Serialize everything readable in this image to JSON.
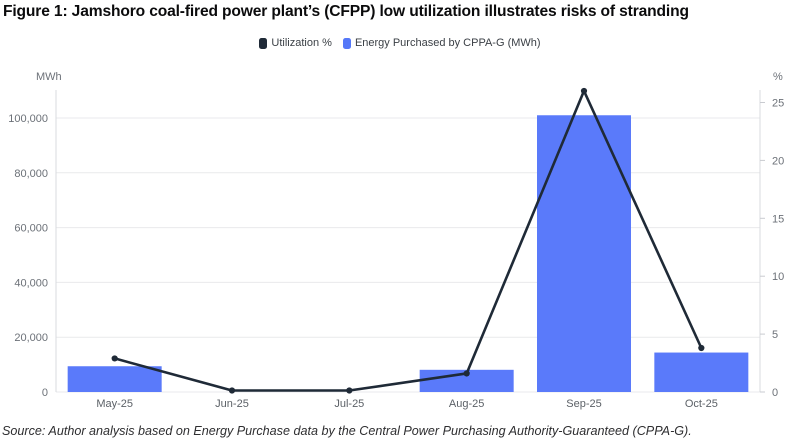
{
  "figure": {
    "title": "Figure 1: Jamshoro coal-fired power plant’s (CFPP) low utilization illustrates risks of stranding",
    "source": "Source: Author analysis based on Energy Purchase data by the Central Power Purchasing Authority-Guaranteed (CPPA-G)."
  },
  "legend": {
    "items": [
      {
        "label": "Utilization %",
        "color": "#1F2A37"
      },
      {
        "label": "Energy Purchased by CPPA-G (MWh)",
        "color": "#5578F8"
      }
    ]
  },
  "chart_data": {
    "type": "bar+line combo",
    "title": "Figure 1: Jamshoro coal-fired power plant’s (CFPP) low utilization illustrates risks of stranding",
    "categories": [
      "May-25",
      "Jun-25",
      "Jul-25",
      "Aug-25",
      "Sep-25",
      "Oct-25"
    ],
    "series": [
      {
        "name": "Energy Purchased by CPPA-G (MWh)",
        "type": "bar",
        "axis": "left",
        "color": "#5A7AFA",
        "values": [
          9400,
          0,
          0,
          8100,
          101000,
          14400
        ]
      },
      {
        "name": "Utilization %",
        "type": "line",
        "axis": "right",
        "color": "#1F2A37",
        "values": [
          2.9,
          0,
          0,
          1.6,
          26,
          3.8
        ]
      }
    ],
    "left_axis": {
      "label": "MWh",
      "ticks": [
        0,
        20000,
        40000,
        60000,
        80000,
        100000
      ],
      "range": [
        0,
        110000
      ]
    },
    "right_axis": {
      "label": "%",
      "ticks": [
        0,
        5,
        10,
        15,
        20,
        25
      ],
      "range": [
        0,
        26.5
      ]
    },
    "grid": "horizontal",
    "legend_position": "top-center"
  }
}
